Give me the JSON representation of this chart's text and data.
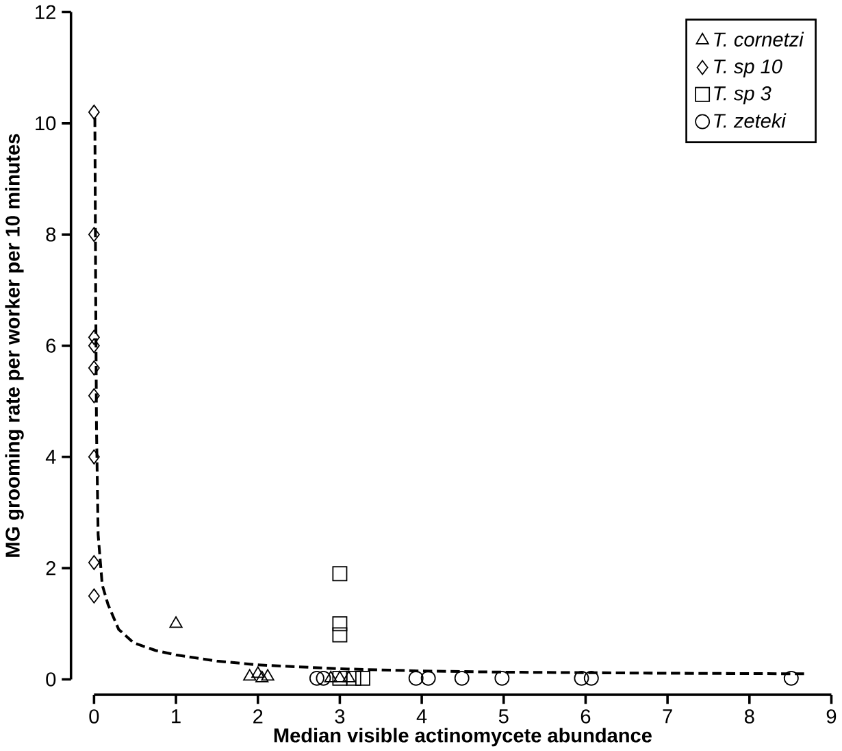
{
  "chart_data": {
    "type": "scatter",
    "xlabel": "Median visible actinomycete abundance",
    "ylabel": "MG grooming rate per worker per 10 minutes",
    "xlim": [
      0,
      9
    ],
    "ylim": [
      0,
      12
    ],
    "xticks": [
      0,
      1,
      2,
      3,
      4,
      5,
      6,
      7,
      8,
      9
    ],
    "yticks": [
      0,
      2,
      4,
      6,
      8,
      10,
      12
    ],
    "legend": "top right",
    "grid": false,
    "series": [
      {
        "name": "T. cornetzi",
        "color": "#000000",
        "marker": "triangle",
        "x": [
          1,
          1.9,
          2.0,
          2.12,
          2.05,
          2.89,
          3.0,
          3.11
        ],
        "values": [
          1.0,
          0.05,
          0.1,
          0.05,
          0.02,
          0.02,
          0.02,
          0.02
        ]
      },
      {
        "name": "T. sp 10",
        "color": "#000000",
        "marker": "diamond",
        "x": [
          0,
          0,
          0,
          0,
          0,
          0,
          0,
          0,
          0
        ],
        "values": [
          10.2,
          8,
          6.15,
          6,
          5.6,
          5.1,
          4,
          2.1,
          1.5
        ]
      },
      {
        "name": "T. sp 3",
        "color": "#000000",
        "marker": "square",
        "x": [
          3,
          3,
          3,
          3,
          3.17,
          3.28
        ],
        "values": [
          1.9,
          1.0,
          0.8,
          0.02,
          0.02,
          0.02
        ]
      },
      {
        "name": "T. zeteki",
        "color": "#000000",
        "marker": "circle",
        "x": [
          2.72,
          2.8,
          3.93,
          4.08,
          4.49,
          4.98,
          5.95,
          6.07,
          8.51
        ],
        "values": [
          0.02,
          0.02,
          0.02,
          0.02,
          0.02,
          0.02,
          0.02,
          0.02,
          0.02
        ]
      },
      {
        "type": "line",
        "color": "#000000",
        "line_style": "dashed",
        "marker": "none",
        "x": [
          0.01,
          0.02,
          0.03,
          0.05,
          0.1,
          0.17,
          0.3,
          0.48,
          0.75,
          1,
          1.5,
          2,
          3,
          4,
          5,
          6,
          7,
          8.7
        ],
        "values": [
          10.1,
          7,
          4.5,
          2.6,
          1.7,
          1.35,
          0.9,
          0.66,
          0.52,
          0.44,
          0.33,
          0.26,
          0.19,
          0.15,
          0.13,
          0.12,
          0.11,
          0.1
        ]
      }
    ]
  }
}
